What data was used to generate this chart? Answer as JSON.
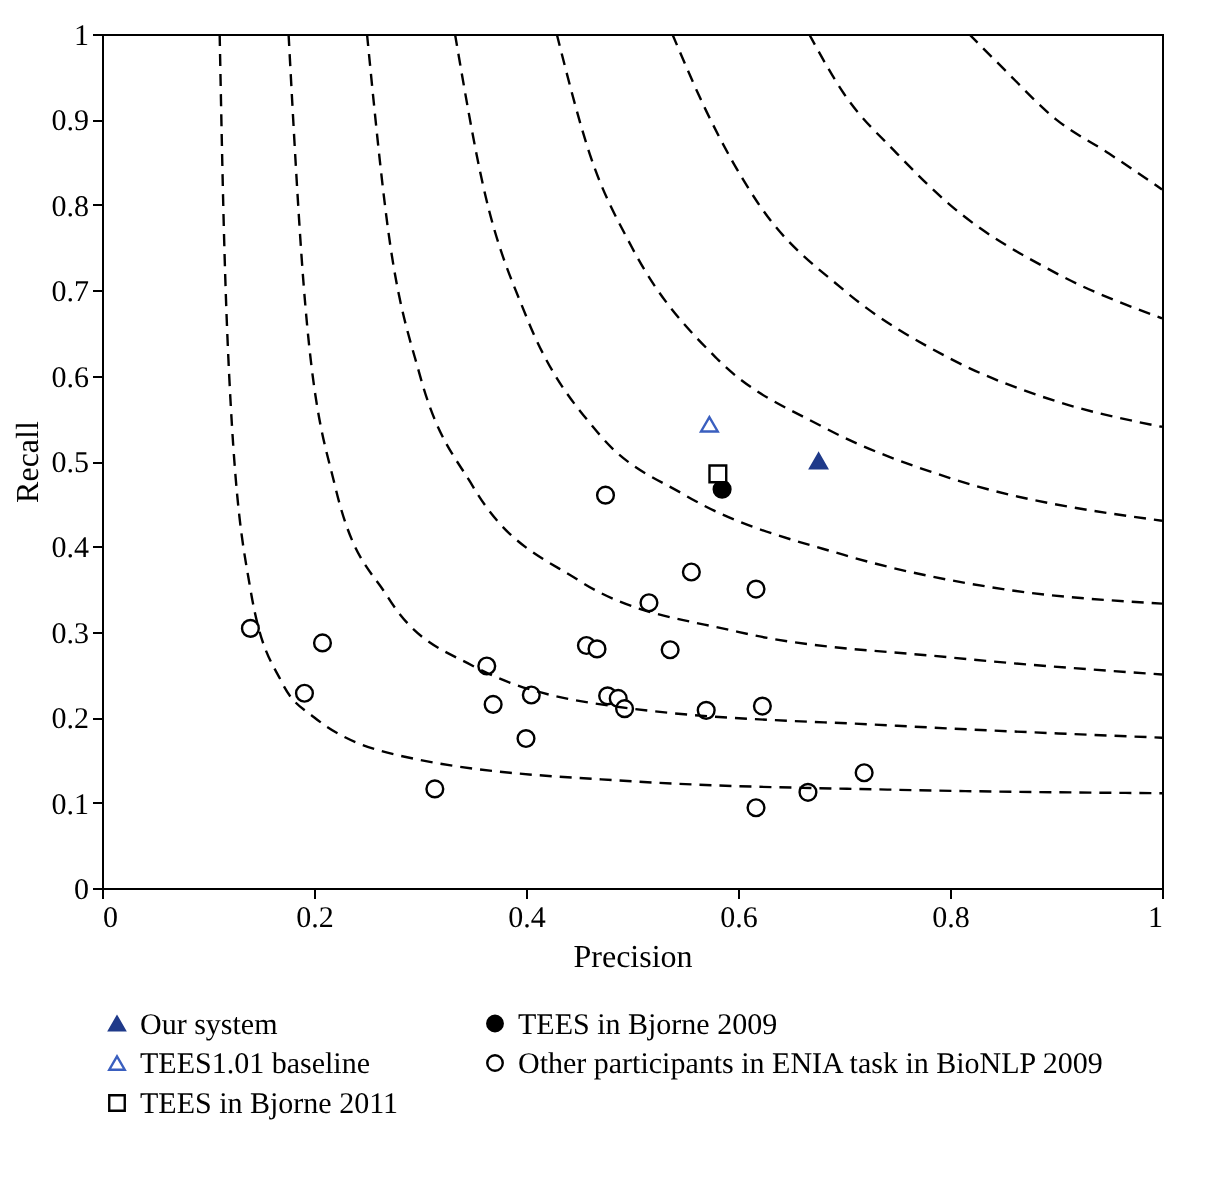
{
  "chart_data": {
    "type": "scatter",
    "xlabel": "Precision",
    "ylabel": "Recall",
    "xlim": [
      0,
      1
    ],
    "ylim": [
      0,
      1
    ],
    "xticks": [
      0,
      0.2,
      0.4,
      0.6,
      0.8,
      1
    ],
    "yticks": [
      0,
      0.1,
      0.2,
      0.3,
      0.4,
      0.5,
      0.6,
      0.7,
      0.8,
      0.9,
      1
    ],
    "grid": false,
    "legend": "bottom",
    "series": [
      {
        "name": "Our system",
        "marker": "triangle",
        "color": "#1f3a8a",
        "colors": [
          "#1f3a8a"
        ],
        "x": [
          0.676
        ],
        "values": [
          0.5
        ]
      },
      {
        "name": "TEES in Bjorne 2009",
        "marker": "circle",
        "color": "#000000",
        "colors": [
          "#000000"
        ],
        "x": [
          0.585
        ],
        "values": [
          0.467
        ]
      },
      {
        "name": "TEES1.01 baseline",
        "marker": "triangle",
        "color": "#3a5fbf",
        "x": [
          0.573
        ],
        "values": [
          0.543
        ]
      },
      {
        "name": "Other participants in ENIA task in BioNLP 2009",
        "marker": "circle",
        "color": "#000000",
        "x": [
          0.14,
          0.208,
          0.191,
          0.314,
          0.363,
          0.369,
          0.405,
          0.4,
          0.457,
          0.467,
          0.475,
          0.477,
          0.487,
          0.493,
          0.556,
          0.617,
          0.516,
          0.536,
          0.57,
          0.623,
          0.719,
          0.666,
          0.617
        ],
        "values": [
          0.304,
          0.287,
          0.228,
          0.116,
          0.26,
          0.215,
          0.226,
          0.175,
          0.284,
          0.28,
          0.46,
          0.225,
          0.222,
          0.21,
          0.37,
          0.35,
          0.334,
          0.279,
          0.208,
          0.213,
          0.135,
          0.112,
          0.094
        ]
      },
      {
        "name": "TEES in Bjorne 2011",
        "marker": "square",
        "color": "#000000",
        "x": [
          0.581
        ],
        "values": [
          0.485
        ]
      },
      {
        "type": "line",
        "line_style": "dashed",
        "marker": "none",
        "color": "#000000",
        "x": [
          0.111,
          0.115,
          0.12,
          0.14,
          0.17,
          0.2,
          0.3,
          0.5,
          0.75,
          1
        ],
        "values": [
          1,
          0.77,
          0.6,
          0.35,
          0.24,
          0.2,
          0.15,
          0.125,
          0.115,
          0.111
        ]
      },
      {
        "type": "line",
        "line_style": "dashed",
        "marker": "none",
        "color": "#000000",
        "x": [
          0.176,
          0.19,
          0.22,
          0.27,
          0.35,
          0.5,
          0.75,
          1
        ],
        "values": [
          1,
          0.71,
          0.47,
          0.34,
          0.26,
          0.21,
          0.19,
          0.176
        ]
      },
      {
        "type": "line",
        "line_style": "dashed",
        "marker": "none",
        "color": "#000000",
        "x": [
          0.25,
          0.27,
          0.3,
          0.35,
          0.45,
          0.6,
          0.8,
          1
        ],
        "values": [
          1,
          0.77,
          0.6,
          0.47,
          0.36,
          0.3,
          0.27,
          0.25
        ]
      },
      {
        "type": "line",
        "line_style": "dashed",
        "marker": "none",
        "color": "#000000",
        "x": [
          0.333,
          0.36,
          0.4,
          0.47,
          0.55,
          0.7,
          0.85,
          1
        ],
        "values": [
          1,
          0.82,
          0.67,
          0.53,
          0.46,
          0.39,
          0.35,
          0.333
        ]
      },
      {
        "type": "line",
        "line_style": "dashed",
        "marker": "none",
        "color": "#000000",
        "x": [
          0.429,
          0.46,
          0.5,
          0.58,
          0.68,
          0.8,
          1
        ],
        "values": [
          1,
          0.86,
          0.75,
          0.62,
          0.54,
          0.48,
          0.43
        ]
      },
      {
        "type": "line",
        "line_style": "dashed",
        "marker": "none",
        "color": "#000000",
        "x": [
          0.538,
          0.57,
          0.62,
          0.7,
          0.8,
          0.9,
          1
        ],
        "values": [
          1,
          0.91,
          0.8,
          0.7,
          0.62,
          0.57,
          0.54
        ]
      },
      {
        "type": "line",
        "line_style": "dashed",
        "marker": "none",
        "color": "#000000",
        "x": [
          0.667,
          0.7,
          0.75,
          0.8,
          0.9,
          1
        ],
        "values": [
          1,
          0.93,
          0.86,
          0.8,
          0.72,
          0.667
        ]
      },
      {
        "type": "line",
        "line_style": "dashed",
        "marker": "none",
        "color": "#000000",
        "x": [
          0.818,
          0.85,
          0.9,
          0.95,
          1
        ],
        "values": [
          1,
          0.96,
          0.9,
          0.86,
          0.818
        ]
      }
    ]
  }
}
